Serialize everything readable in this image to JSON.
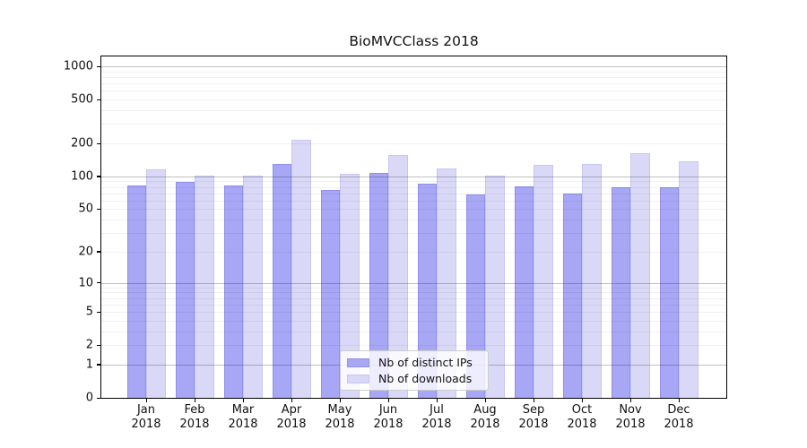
{
  "title": "BioMVCClass 2018",
  "chart_data": {
    "type": "bar",
    "title": "BioMVCClass 2018",
    "xlabel": "",
    "ylabel": "",
    "year": "2018",
    "categories": [
      "Jan",
      "Feb",
      "Mar",
      "Apr",
      "May",
      "Jun",
      "Jul",
      "Aug",
      "Sep",
      "Oct",
      "Nov",
      "Dec"
    ],
    "x_tick_second_line": [
      "2018",
      "2018",
      "2018",
      "2018",
      "2018",
      "2018",
      "2018",
      "2018",
      "2018",
      "2018",
      "2018",
      "2018"
    ],
    "series": [
      {
        "name": "Nb of distinct IPs",
        "color": "#a7a7f5",
        "edge_color": "#9090ea",
        "values": [
          82,
          89,
          83,
          131,
          75,
          108,
          85,
          69,
          81,
          70,
          80,
          79
        ]
      },
      {
        "name": "Nb of downloads",
        "color": "#d9d9f7",
        "edge_color": "#c6c6f2",
        "values": [
          115,
          102,
          101,
          215,
          106,
          157,
          118,
          101,
          128,
          130,
          162,
          137
        ]
      }
    ],
    "y_axis": {
      "scale": "log1p",
      "ticks": [
        0,
        1,
        2,
        5,
        10,
        20,
        50,
        100,
        200,
        500,
        1000
      ],
      "tick_labels": [
        "0",
        "1",
        "2",
        "5",
        "10",
        "20",
        "50",
        "100",
        "200",
        "500",
        "1000"
      ],
      "ylim": [
        0,
        1230
      ],
      "grid": "on",
      "major_gridlines_at": [
        1,
        10,
        100,
        1000
      ]
    },
    "legend": {
      "position": "lower center",
      "entries": [
        "Nb of distinct IPs",
        "Nb of downloads"
      ]
    }
  }
}
